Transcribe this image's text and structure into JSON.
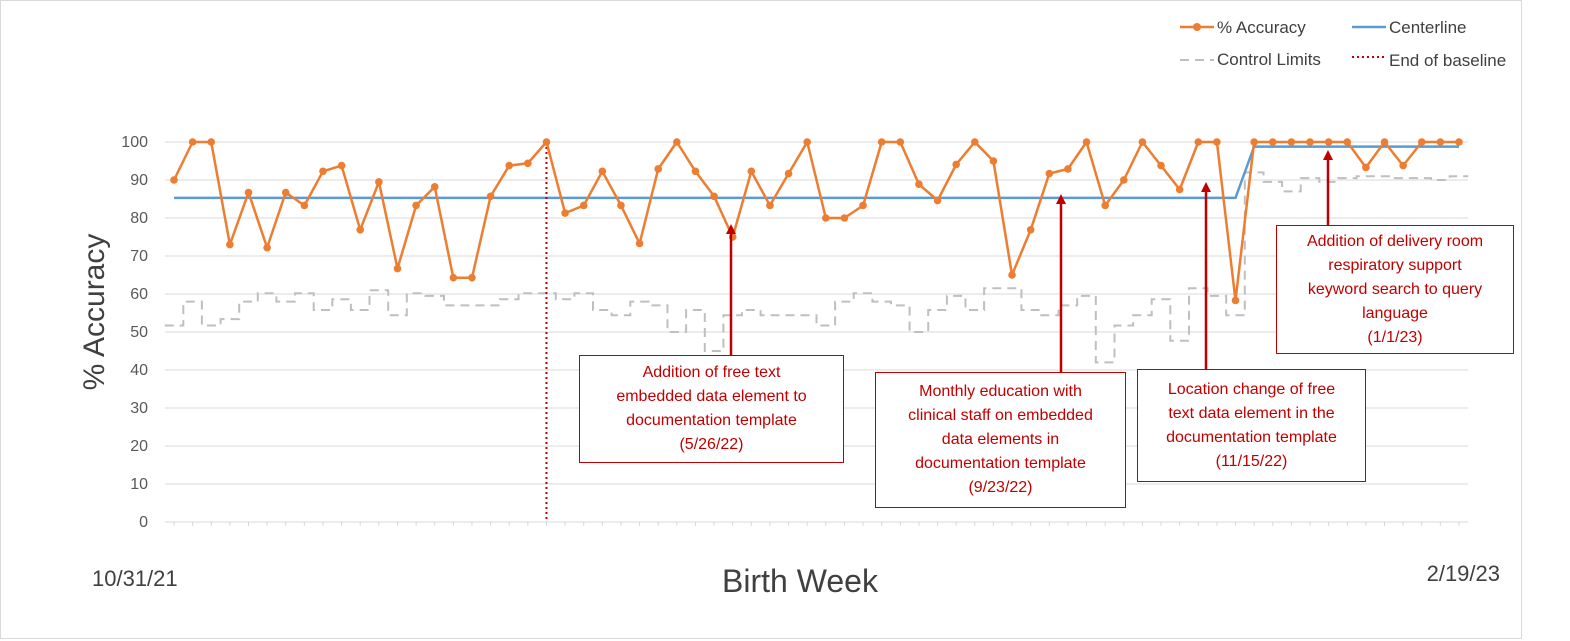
{
  "chart_data": {
    "type": "line",
    "title": "",
    "ylabel": "% Accuracy",
    "xlabel": "Birth Week",
    "x_start_label": "10/31/21",
    "x_end_label": "2/19/23",
    "ylim": [
      0,
      100
    ],
    "yticks": [
      0,
      10,
      20,
      30,
      40,
      50,
      60,
      70,
      80,
      90,
      100
    ],
    "grid": true,
    "legend_position": "top-right",
    "legend": [
      "% Accuracy",
      "Centerline",
      "Control Limits",
      "End of baseline"
    ],
    "colors": {
      "accuracy": "#ed7d31",
      "centerline": "#5b9bd5",
      "control_limits": "#bfbfbf",
      "baseline": "#c00000",
      "annotation": "#c00000"
    },
    "series": [
      {
        "name": "% Accuracy",
        "values": [
          90,
          100,
          100,
          73,
          86.7,
          72.2,
          86.7,
          83.3,
          92.3,
          93.8,
          76.9,
          89.5,
          66.7,
          83.3,
          88.2,
          64.3,
          64.3,
          85.7,
          93.8,
          94.4,
          100,
          81.3,
          83.3,
          92.3,
          83.3,
          73.3,
          92.9,
          100,
          92.3,
          85.7,
          75,
          92.3,
          83.3,
          91.7,
          100,
          80,
          80,
          83.3,
          100,
          100,
          88.9,
          84.6,
          94.1,
          100,
          95,
          65,
          76.9,
          91.7,
          92.9,
          100,
          83.3,
          90,
          100,
          93.8,
          87.5,
          100,
          100,
          58.3,
          100,
          100,
          100,
          100,
          100,
          100,
          93.3,
          100,
          93.8,
          100,
          100,
          100
        ]
      },
      {
        "name": "Centerline",
        "values": [
          85.3,
          85.3,
          85.3,
          85.3,
          85.3,
          85.3,
          85.3,
          85.3,
          85.3,
          85.3,
          85.3,
          85.3,
          85.3,
          85.3,
          85.3,
          85.3,
          85.3,
          85.3,
          85.3,
          85.3,
          85.3,
          85.3,
          85.3,
          85.3,
          85.3,
          85.3,
          85.3,
          85.3,
          85.3,
          85.3,
          85.3,
          85.3,
          85.3,
          85.3,
          85.3,
          85.3,
          85.3,
          85.3,
          85.3,
          85.3,
          85.3,
          85.3,
          85.3,
          85.3,
          85.3,
          85.3,
          85.3,
          85.3,
          85.3,
          85.3,
          85.3,
          85.3,
          85.3,
          85.3,
          85.3,
          85.3,
          85.3,
          85.3,
          98.8,
          98.8,
          98.8,
          98.8,
          98.8,
          98.8,
          98.8,
          98.8,
          98.8,
          98.8,
          98.8,
          98.8
        ]
      },
      {
        "name": "Control Limits",
        "values": [
          51.7,
          58,
          51.7,
          53.4,
          58,
          60.2,
          58,
          60.2,
          55.8,
          58.6,
          55.8,
          61,
          54.4,
          60.2,
          59.5,
          57,
          57,
          57,
          58.6,
          60.2,
          60.2,
          58.6,
          60.2,
          55.8,
          54.4,
          58,
          57,
          50,
          55.8,
          45,
          54.4,
          55.8,
          54.4,
          54.4,
          54.4,
          51.7,
          58,
          60.2,
          58,
          57,
          50,
          55.8,
          59.5,
          55.8,
          61.5,
          61.5,
          55.8,
          54.4,
          57,
          59.5,
          42,
          51.7,
          54.4,
          58.6,
          47.7,
          61.5,
          59.5,
          54.4,
          92,
          89.5,
          87,
          90.5,
          89.5,
          90.5,
          91,
          91,
          90.5,
          90.5,
          90,
          91
        ]
      }
    ],
    "baseline_end_index": 20,
    "annotations": [
      {
        "text": "Addition of free text\nembedded data element to\ndocumentation template\n(5/26/22)",
        "point_index": 29
      },
      {
        "text": "Monthly education with\nclinical staff on embedded\ndata elements in\ndocumentation template\n(9/23/22)",
        "point_index": 47
      },
      {
        "text": "Location change of free\ntext data element in the\ndocumentation template\n(11/15/22)",
        "point_index": 55
      },
      {
        "text": "Addition of delivery room\nrespiratory support\nkeyword search to query\nlanguage\n(1/1/23)",
        "point_index": 61
      }
    ]
  }
}
